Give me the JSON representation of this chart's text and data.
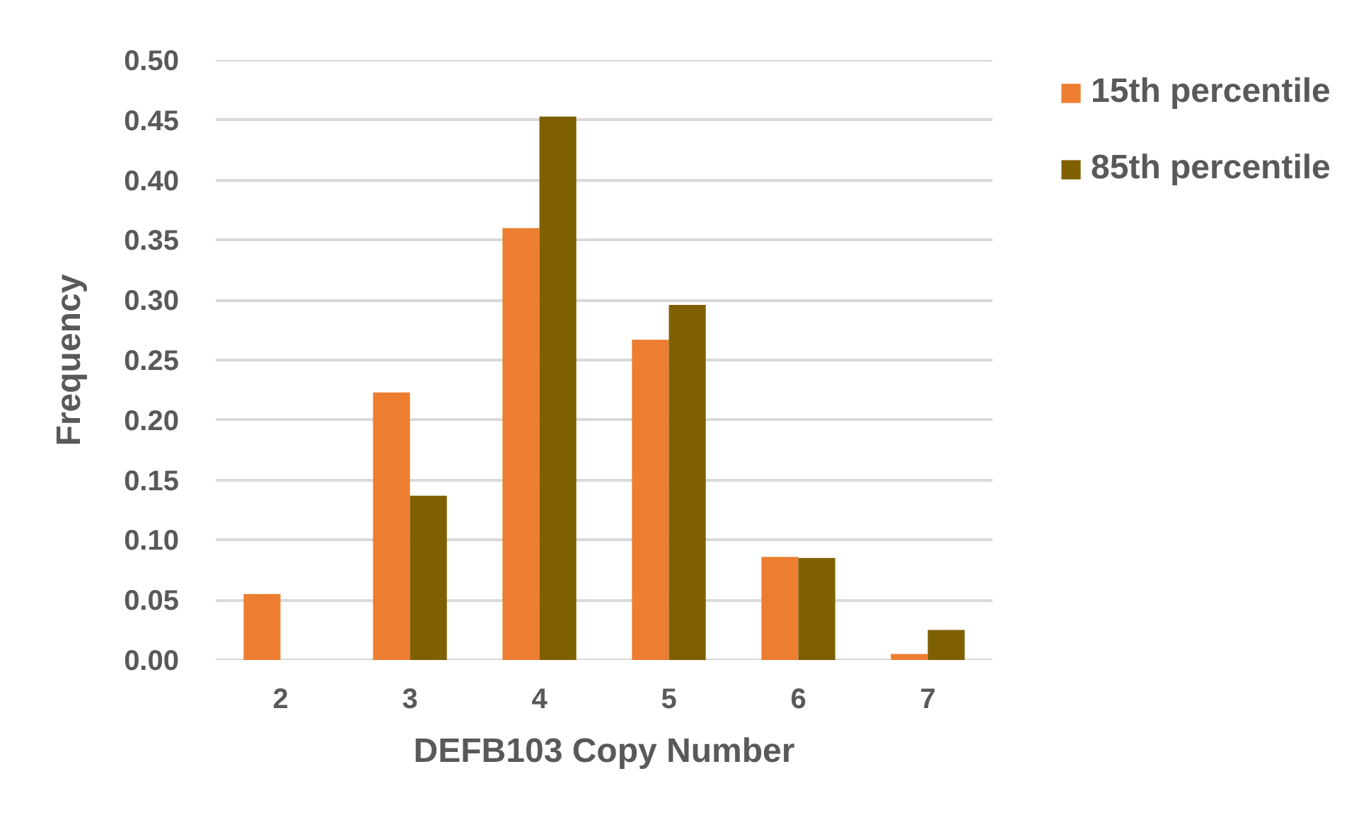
{
  "chart_data": {
    "type": "bar",
    "xlabel": "DEFB103 Copy Number",
    "ylabel": "Frequency",
    "categories": [
      "2",
      "3",
      "4",
      "5",
      "6",
      "7"
    ],
    "series": [
      {
        "name": "15th percentile",
        "color": "#ed7d31",
        "values": [
          0.055,
          0.223,
          0.36,
          0.267,
          0.086,
          0.005
        ]
      },
      {
        "name": "85th percentile",
        "color": "#7f6000",
        "values": [
          null,
          0.137,
          0.453,
          0.296,
          0.085,
          0.025
        ]
      }
    ],
    "ylim": [
      0,
      0.5
    ],
    "yticks": [
      {
        "value": 0,
        "label": "0.00"
      },
      {
        "value": 0.05,
        "label": "0.05"
      },
      {
        "value": 0.1,
        "label": "0.10"
      },
      {
        "value": 0.15,
        "label": "0.15"
      },
      {
        "value": 0.2,
        "label": "0.20"
      },
      {
        "value": 0.25,
        "label": "0.25"
      },
      {
        "value": 0.3,
        "label": "0.30"
      },
      {
        "value": 0.35,
        "label": "0.35"
      },
      {
        "value": 0.4,
        "label": "0.40"
      },
      {
        "value": 0.45,
        "label": "0.45"
      },
      {
        "value": 0.5,
        "label": "0.50"
      }
    ],
    "grid": "y",
    "legend": "top right"
  }
}
